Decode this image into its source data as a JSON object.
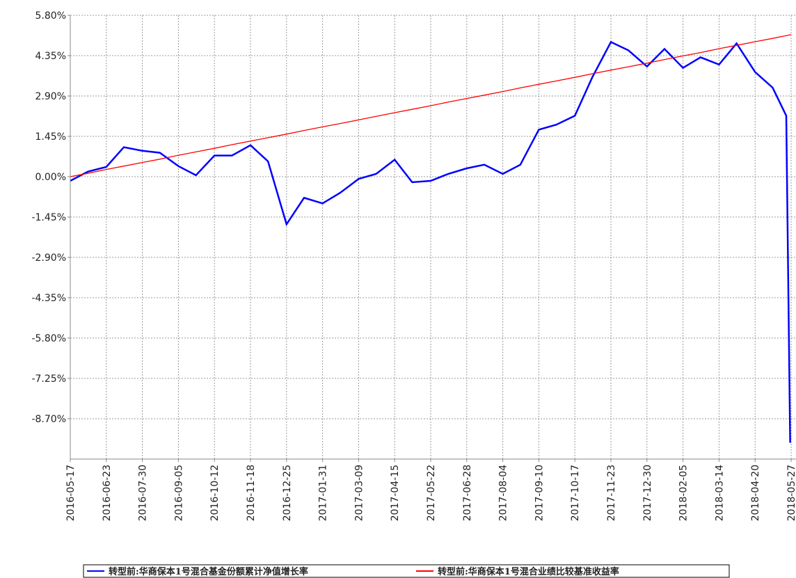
{
  "chart_data": {
    "type": "line",
    "x": [
      "2016-05-17",
      "2016-06-04",
      "2016-06-23",
      "2016-07-11",
      "2016-07-30",
      "2016-08-17",
      "2016-09-05",
      "2016-09-23",
      "2016-10-12",
      "2016-10-30",
      "2016-11-18",
      "2016-12-06",
      "2016-12-25",
      "2017-01-12",
      "2017-01-31",
      "2017-02-18",
      "2017-03-09",
      "2017-03-27",
      "2017-04-15",
      "2017-05-03",
      "2017-05-22",
      "2017-06-09",
      "2017-06-28",
      "2017-07-16",
      "2017-08-04",
      "2017-08-22",
      "2017-09-10",
      "2017-09-28",
      "2017-10-17",
      "2017-11-04",
      "2017-11-23",
      "2017-12-11",
      "2017-12-30",
      "2018-01-17",
      "2018-02-05",
      "2018-02-23",
      "2018-03-14",
      "2018-04-01",
      "2018-04-20",
      "2018-05-08",
      "2018-05-22",
      "2018-05-26",
      "2018-05-27"
    ],
    "series": [
      {
        "name": "转型前:华商保本1号混合基金份额累计净值增长率",
        "color": "#0000ff",
        "values": [
          -0.15,
          0.18,
          0.35,
          1.06,
          0.93,
          0.86,
          0.38,
          0.05,
          0.76,
          0.76,
          1.13,
          0.55,
          -1.71,
          -0.76,
          -0.96,
          -0.58,
          -0.08,
          0.1,
          0.61,
          -0.2,
          -0.15,
          0.1,
          0.3,
          0.43,
          0.1,
          0.43,
          1.69,
          1.87,
          2.19,
          3.58,
          4.84,
          4.54,
          3.96,
          4.59,
          3.91,
          4.29,
          4.03,
          4.79,
          3.76,
          3.2,
          2.19,
          -9.53,
          -9.53
        ]
      },
      {
        "name": "转型前:华商保本1号混合业绩比较基准收益率",
        "color": "#ff0000",
        "values": [
          0,
          0.12,
          0.26,
          0.38,
          0.51,
          0.63,
          0.77,
          0.89,
          1.02,
          1.15,
          1.28,
          1.4,
          1.53,
          1.66,
          1.79,
          1.91,
          2.04,
          2.17,
          2.3,
          2.42,
          2.55,
          2.68,
          2.81,
          2.93,
          3.06,
          3.19,
          3.32,
          3.44,
          3.57,
          3.7,
          3.83,
          3.95,
          4.08,
          4.21,
          4.34,
          4.46,
          4.6,
          4.72,
          4.85,
          4.97,
          5.07,
          5.1,
          5.11
        ]
      }
    ],
    "xlim": [
      "2016-05-17",
      "2018-06-01"
    ],
    "xticks": [
      "2016-05-17",
      "2016-06-23",
      "2016-07-30",
      "2016-09-05",
      "2016-10-12",
      "2016-11-18",
      "2016-12-25",
      "2017-01-31",
      "2017-03-09",
      "2017-04-15",
      "2017-05-22",
      "2017-06-28",
      "2017-08-04",
      "2017-09-10",
      "2017-10-17",
      "2017-11-23",
      "2017-12-30",
      "2018-02-05",
      "2018-03-14",
      "2018-04-20",
      "2018-05-27"
    ],
    "ylim": [
      -10.15,
      5.8
    ],
    "yticks": [
      {
        "value": 5.8,
        "label": "5.80%"
      },
      {
        "value": 4.35,
        "label": "4.35%"
      },
      {
        "value": 2.9,
        "label": "2.90%"
      },
      {
        "value": 1.45,
        "label": "1.45%"
      },
      {
        "value": 0,
        "label": "0.00%"
      },
      {
        "value": -1.45,
        "label": "-1.45%"
      },
      {
        "value": -2.9,
        "label": "-2.90%"
      },
      {
        "value": -4.35,
        "label": "-4.35%"
      },
      {
        "value": -5.8,
        "label": "-5.80%"
      },
      {
        "value": -7.25,
        "label": "-7.25%"
      },
      {
        "value": -8.7,
        "label": "-8.70%"
      }
    ],
    "grid": true
  }
}
